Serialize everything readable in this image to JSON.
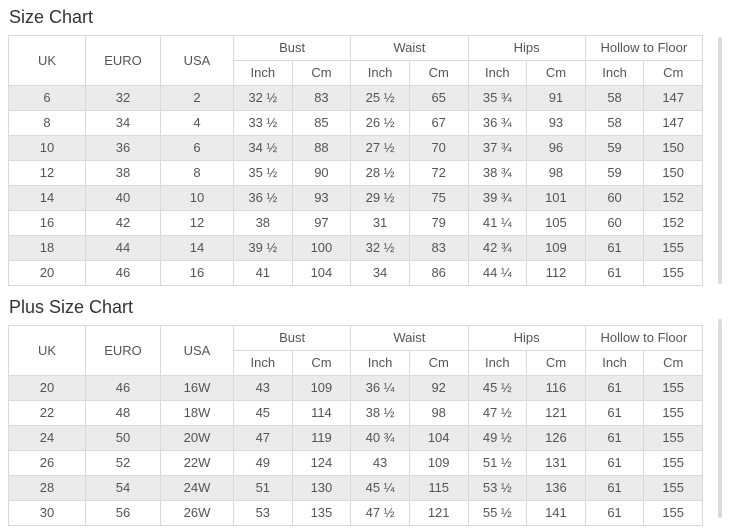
{
  "colors": {
    "row_stripe": "#ebebeb",
    "table_border": "#d9d9d9",
    "cell_text": "#555555",
    "title_text": "#333333",
    "scrollbar": "#dcdcdc"
  },
  "size_chart": {
    "title": "Size Chart",
    "size_columns": [
      "UK",
      "EURO",
      "USA"
    ],
    "measure_groups": [
      {
        "label": "Bust",
        "units": [
          "Inch",
          "Cm"
        ]
      },
      {
        "label": "Waist",
        "units": [
          "Inch",
          "Cm"
        ]
      },
      {
        "label": "Hips",
        "units": [
          "Inch",
          "Cm"
        ]
      },
      {
        "label": "Hollow to Floor",
        "units": [
          "Inch",
          "Cm"
        ]
      }
    ],
    "rows": [
      [
        "6",
        "32",
        "2",
        "32 ½",
        "83",
        "25 ½",
        "65",
        "35 ¾",
        "91",
        "58",
        "147"
      ],
      [
        "8",
        "34",
        "4",
        "33 ½",
        "85",
        "26 ½",
        "67",
        "36 ¾",
        "93",
        "58",
        "147"
      ],
      [
        "10",
        "36",
        "6",
        "34 ½",
        "88",
        "27 ½",
        "70",
        "37 ¾",
        "96",
        "59",
        "150"
      ],
      [
        "12",
        "38",
        "8",
        "35 ½",
        "90",
        "28 ½",
        "72",
        "38 ¾",
        "98",
        "59",
        "150"
      ],
      [
        "14",
        "40",
        "10",
        "36 ½",
        "93",
        "29 ½",
        "75",
        "39 ¾",
        "101",
        "60",
        "152"
      ],
      [
        "16",
        "42",
        "12",
        "38",
        "97",
        "31",
        "79",
        "41 ¼",
        "105",
        "60",
        "152"
      ],
      [
        "18",
        "44",
        "14",
        "39 ½",
        "100",
        "32 ½",
        "83",
        "42 ¾",
        "109",
        "61",
        "155"
      ],
      [
        "20",
        "46",
        "16",
        "41",
        "104",
        "34",
        "86",
        "44 ¼",
        "112",
        "61",
        "155"
      ]
    ]
  },
  "plus_size_chart": {
    "title": "Plus Size Chart",
    "size_columns": [
      "UK",
      "EURO",
      "USA"
    ],
    "measure_groups": [
      {
        "label": "Bust",
        "units": [
          "Inch",
          "Cm"
        ]
      },
      {
        "label": "Waist",
        "units": [
          "Inch",
          "Cm"
        ]
      },
      {
        "label": "Hips",
        "units": [
          "Inch",
          "Cm"
        ]
      },
      {
        "label": "Hollow to Floor",
        "units": [
          "Inch",
          "Cm"
        ]
      }
    ],
    "rows": [
      [
        "20",
        "46",
        "16W",
        "43",
        "109",
        "36 ¼",
        "92",
        "45 ½",
        "116",
        "61",
        "155"
      ],
      [
        "22",
        "48",
        "18W",
        "45",
        "114",
        "38 ½",
        "98",
        "47 ½",
        "121",
        "61",
        "155"
      ],
      [
        "24",
        "50",
        "20W",
        "47",
        "119",
        "40 ¾",
        "104",
        "49 ½",
        "126",
        "61",
        "155"
      ],
      [
        "26",
        "52",
        "22W",
        "49",
        "124",
        "43",
        "109",
        "51 ½",
        "131",
        "61",
        "155"
      ],
      [
        "28",
        "54",
        "24W",
        "51",
        "130",
        "45 ¼",
        "115",
        "53 ½",
        "136",
        "61",
        "155"
      ],
      [
        "30",
        "56",
        "26W",
        "53",
        "135",
        "47 ½",
        "121",
        "55 ½",
        "141",
        "61",
        "155"
      ]
    ]
  }
}
